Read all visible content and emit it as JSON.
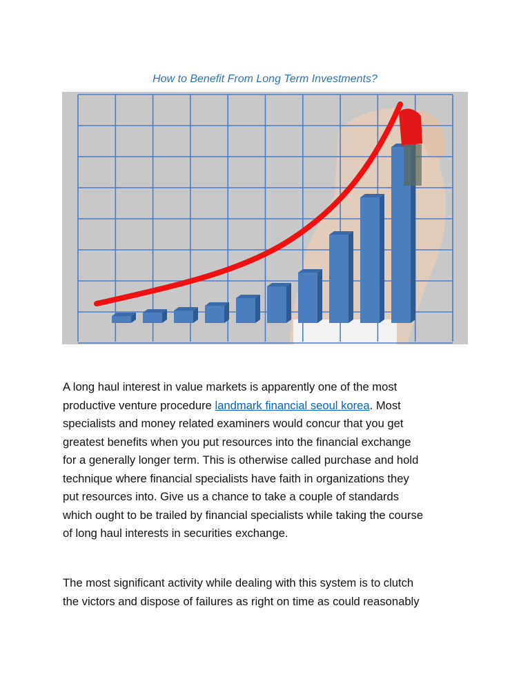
{
  "document": {
    "title": "How to Benefit From Long Term Investments?",
    "figure": {
      "bars": [
        1,
        1.5,
        1.8,
        2.5,
        3.6,
        5.3,
        7.3,
        12.8,
        18.2,
        25.5
      ],
      "colors": {
        "background": "#c8c8c8",
        "grid": "#4a7cc9",
        "bar": "#4a7ebf",
        "bar_side": "#2f5a91",
        "bar_top": "#3a6aa8",
        "curve": "#ee1111",
        "skin": "#e8d0bd"
      }
    },
    "paragraph1": {
      "line1": "A long haul interest in value markets is apparently one of the most",
      "line2_before": "productive venture procedure ",
      "link": "landmark financial seoul korea",
      "line2_after": ". Most",
      "line3": "specialists and money related examiners would concur that you get",
      "line4": "greatest benefits when you put resources into the financial exchange",
      "line5": "for a generally longer term. This is otherwise called purchase and hold",
      "line6": "technique where financial specialists have faith in organizations they",
      "line7": "put resources into. Give us a chance to take a couple of standards",
      "line8": "which ought to be trailed by financial specialists while taking the course",
      "line9": "of long haul interests in securities exchange."
    },
    "paragraph2": {
      "line1": "The most significant activity while dealing with this system is to clutch",
      "line2": "the victors and dispose of failures as right on time as could reasonably"
    }
  }
}
